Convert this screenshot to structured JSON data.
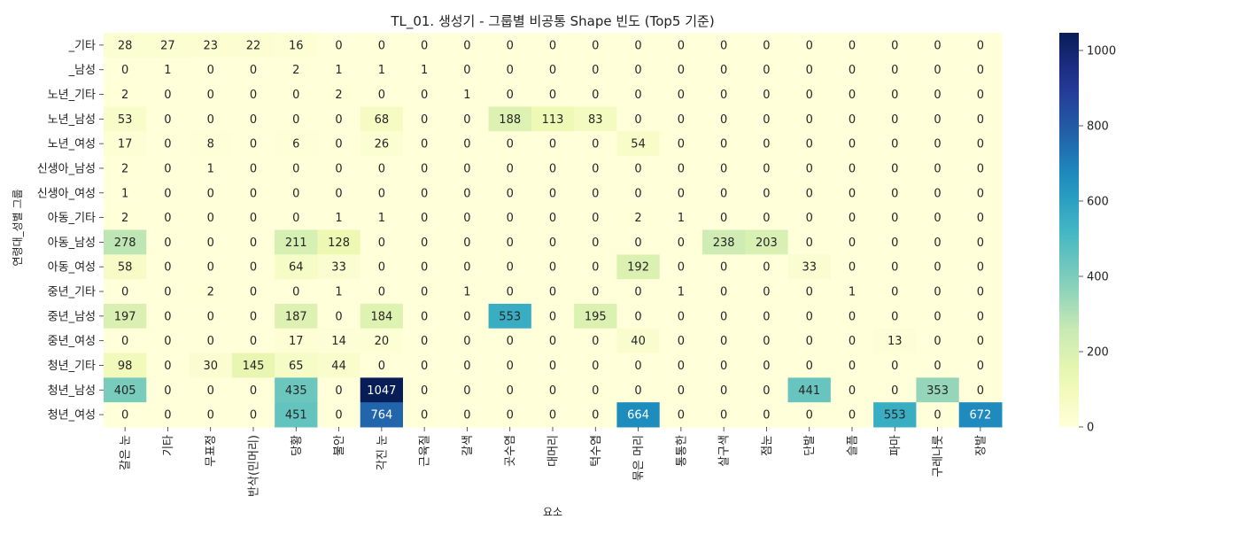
{
  "chart_data": {
    "type": "heatmap",
    "title": "TL_01. 생성기 - 그룹별 비공통 Shape 빈도 (Top5 기준)",
    "xlabel": "요소",
    "ylabel": "연령대_성별 그룹",
    "x": [
      "갈은 눈",
      "기타",
      "무표정",
      "반삭(민머리)",
      "당황",
      "불안",
      "각진 눈",
      "근육질",
      "갈색",
      "곳수염",
      "대머리",
      "턱수염",
      "묶은 머리",
      "통통한",
      "살구색",
      "점눈",
      "단발",
      "슬픔",
      "파마",
      "구레나룻",
      "장발"
    ],
    "y": [
      "_기타",
      "_남성",
      "노년_기타",
      "노년_남성",
      "노년_여성",
      "신생아_남성",
      "신생아_여성",
      "아동_기타",
      "아동_남성",
      "아동_여성",
      "중년_기타",
      "중년_남성",
      "중년_여성",
      "청년_기타",
      "청년_남성",
      "청년_여성"
    ],
    "values": [
      [
        28,
        27,
        23,
        22,
        16,
        0,
        0,
        0,
        0,
        0,
        0,
        0,
        0,
        0,
        0,
        0,
        0,
        0,
        0,
        0,
        0
      ],
      [
        0,
        1,
        0,
        0,
        2,
        1,
        1,
        1,
        0,
        0,
        0,
        0,
        0,
        0,
        0,
        0,
        0,
        0,
        0,
        0,
        0
      ],
      [
        2,
        0,
        0,
        0,
        0,
        2,
        0,
        0,
        1,
        0,
        0,
        0,
        0,
        0,
        0,
        0,
        0,
        0,
        0,
        0,
        0
      ],
      [
        53,
        0,
        0,
        0,
        0,
        0,
        68,
        0,
        0,
        188,
        113,
        83,
        0,
        0,
        0,
        0,
        0,
        0,
        0,
        0,
        0
      ],
      [
        17,
        0,
        8,
        0,
        6,
        0,
        26,
        0,
        0,
        0,
        0,
        0,
        54,
        0,
        0,
        0,
        0,
        0,
        0,
        0,
        0
      ],
      [
        2,
        0,
        1,
        0,
        0,
        0,
        0,
        0,
        0,
        0,
        0,
        0,
        0,
        0,
        0,
        0,
        0,
        0,
        0,
        0,
        0
      ],
      [
        1,
        0,
        0,
        0,
        0,
        0,
        0,
        0,
        0,
        0,
        0,
        0,
        0,
        0,
        0,
        0,
        0,
        0,
        0,
        0,
        0
      ],
      [
        2,
        0,
        0,
        0,
        0,
        1,
        1,
        0,
        0,
        0,
        0,
        0,
        2,
        1,
        0,
        0,
        0,
        0,
        0,
        0,
        0
      ],
      [
        278,
        0,
        0,
        0,
        211,
        128,
        0,
        0,
        0,
        0,
        0,
        0,
        0,
        0,
        238,
        203,
        0,
        0,
        0,
        0,
        0
      ],
      [
        58,
        0,
        0,
        0,
        64,
        33,
        0,
        0,
        0,
        0,
        0,
        0,
        192,
        0,
        0,
        0,
        33,
        0,
        0,
        0,
        0
      ],
      [
        0,
        0,
        2,
        0,
        0,
        1,
        0,
        0,
        1,
        0,
        0,
        0,
        0,
        1,
        0,
        0,
        0,
        1,
        0,
        0,
        0
      ],
      [
        197,
        0,
        0,
        0,
        187,
        0,
        184,
        0,
        0,
        553,
        0,
        195,
        0,
        0,
        0,
        0,
        0,
        0,
        0,
        0,
        0
      ],
      [
        0,
        0,
        0,
        0,
        17,
        14,
        20,
        0,
        0,
        0,
        0,
        0,
        40,
        0,
        0,
        0,
        0,
        0,
        13,
        0,
        0
      ],
      [
        98,
        0,
        30,
        145,
        65,
        44,
        0,
        0,
        0,
        0,
        0,
        0,
        0,
        0,
        0,
        0,
        0,
        0,
        0,
        0,
        0
      ],
      [
        405,
        0,
        0,
        0,
        435,
        0,
        1047,
        0,
        0,
        0,
        0,
        0,
        0,
        0,
        0,
        0,
        441,
        0,
        0,
        353,
        0
      ],
      [
        0,
        0,
        0,
        0,
        451,
        0,
        764,
        0,
        0,
        0,
        0,
        0,
        664,
        0,
        0,
        0,
        0,
        0,
        553,
        0,
        672
      ]
    ],
    "colorbar": {
      "colormap": "YlGnBu",
      "range": [
        0,
        1047
      ],
      "ticks": [
        "0",
        "200",
        "400",
        "600",
        "800",
        "1000"
      ]
    },
    "annotations": "cell values",
    "grid": false
  }
}
